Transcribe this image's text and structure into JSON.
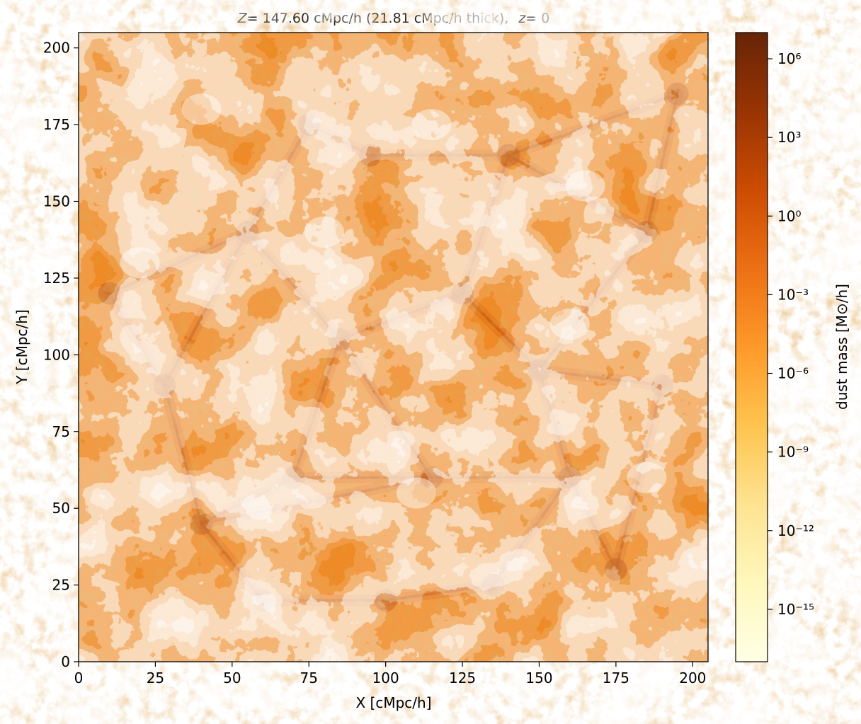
{
  "chart_data": {
    "type": "heatmap",
    "title_main": "= 147.60 cMpc/h (21.81 cMpc/h thick),",
    "title_z_lower": "= 0",
    "xlabel": "X [cMpc/h]",
    "ylabel": "Y [cMpc/h]",
    "xlim": [
      0,
      205
    ],
    "ylim": [
      0,
      205
    ],
    "x_ticks": [
      0,
      25,
      50,
      75,
      100,
      125,
      150,
      175,
      200
    ],
    "y_ticks": [
      0,
      25,
      50,
      75,
      100,
      125,
      150,
      175,
      200
    ],
    "colorbar": {
      "label": "dust mass [M⊙/h]",
      "scale": "log",
      "range_log10": [
        -17,
        7
      ],
      "tick_exponents": [
        6,
        3,
        0,
        -3,
        -6,
        -9,
        -12,
        -15
      ],
      "tick_labels": [
        "10⁶",
        "10³",
        "10⁰",
        "10⁻³",
        "10⁻⁶",
        "10⁻⁹",
        "10⁻¹²",
        "10⁻¹⁵"
      ],
      "colormap": "YlOrBr",
      "color_stops": [
        "#ffffe5",
        "#fff7bc",
        "#fee391",
        "#fec44f",
        "#fe9929",
        "#ec7014",
        "#cc4c02",
        "#993404",
        "#662506"
      ]
    },
    "field_colors": {
      "void": "#ffffff",
      "sheet": "#f4972f",
      "filament": "#e06e14",
      "node": "#b8500a"
    }
  }
}
